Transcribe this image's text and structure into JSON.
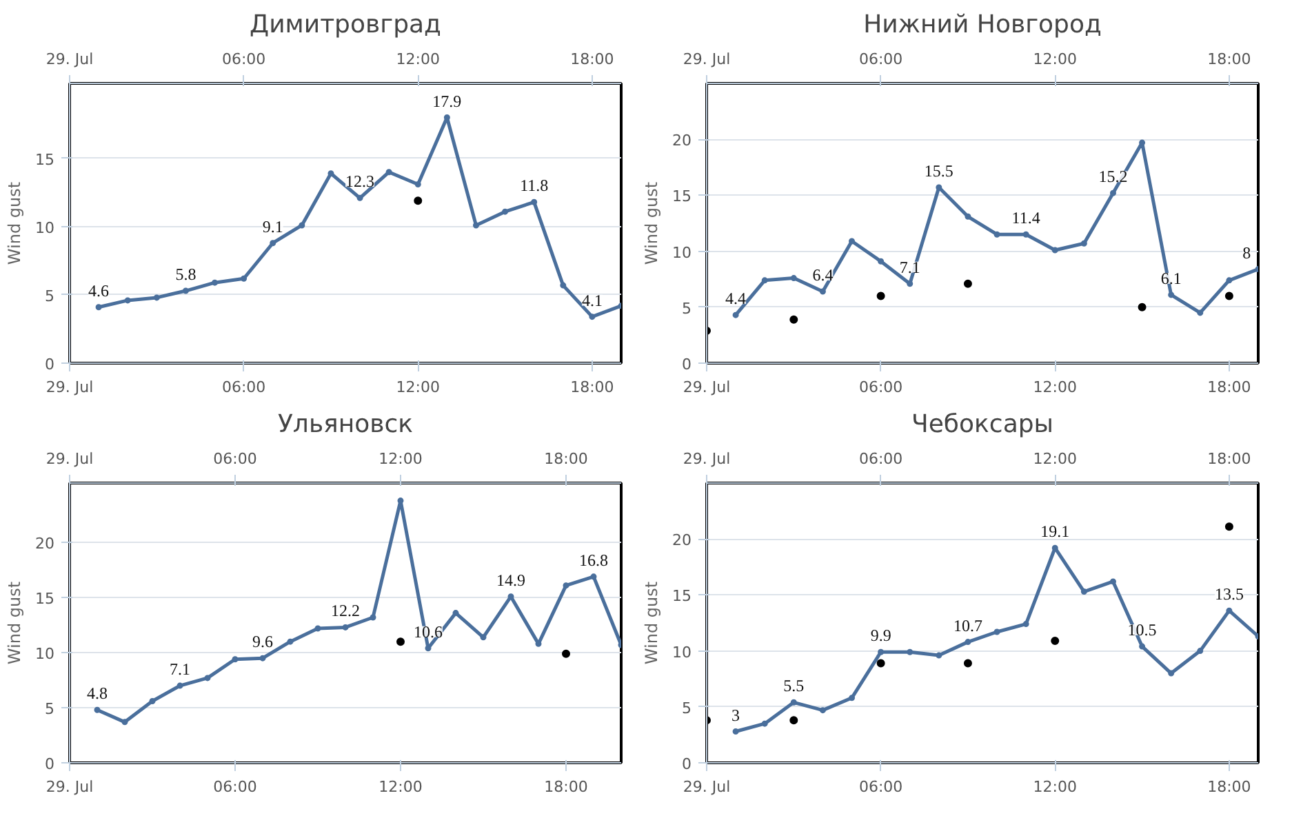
{
  "chart_data": [
    {
      "type": "line",
      "title": "Димитровград",
      "ylabel": "Wind gust",
      "xlim": [
        0,
        19
      ],
      "x2lim": [
        0,
        19
      ],
      "ylim": [
        0,
        20.5
      ],
      "yticks": [
        0,
        5,
        10,
        15
      ],
      "xticks": [
        {
          "value": 0,
          "label": "29. Jul"
        },
        {
          "value": 6,
          "label": "06:00"
        },
        {
          "value": 12,
          "label": "12:00"
        },
        {
          "value": 18,
          "label": "18:00"
        }
      ],
      "x2ticks": [
        {
          "value": 0,
          "label": "29. Jul"
        },
        {
          "value": 6,
          "label": "06:00"
        },
        {
          "value": 12,
          "label": "12:00"
        },
        {
          "value": 18,
          "label": "18:00"
        }
      ],
      "grid": "y",
      "marker": "circle",
      "line_style": "solid",
      "series": [
        {
          "color": "#4a6f9c",
          "x": [
            1,
            2,
            3,
            4,
            5,
            6,
            7,
            8,
            9,
            10,
            11,
            12,
            13,
            14,
            15,
            16,
            17,
            18,
            19
          ],
          "values": [
            4.1,
            4.6,
            4.8,
            5.3,
            5.9,
            6.2,
            8.8,
            10.1,
            13.9,
            12.1,
            14.0,
            13.1,
            18.0,
            10.1,
            11.1,
            11.8,
            5.7,
            3.4,
            4.2
          ]
        },
        {
          "type": "scatter",
          "color": "#000000",
          "x": [
            12
          ],
          "values": [
            11.9
          ]
        }
      ],
      "annotations": [
        {
          "text": "4.6",
          "x": 1,
          "y": 4.1
        },
        {
          "text": "5.8",
          "x": 4,
          "y": 5.3
        },
        {
          "text": "9.1",
          "x": 7,
          "y": 8.8
        },
        {
          "text": "12.3",
          "x": 10,
          "y": 12.1
        },
        {
          "text": "17.9",
          "x": 13,
          "y": 18.0
        },
        {
          "text": "11.8",
          "x": 16,
          "y": 11.8
        },
        {
          "text": "4.1",
          "x": 18,
          "y": 3.4
        }
      ]
    },
    {
      "type": "line",
      "title": "Нижний Новгород",
      "ylabel": "Wind gust",
      "xlim": [
        0,
        19
      ],
      "x2lim": [
        0,
        19
      ],
      "ylim": [
        0,
        25
      ],
      "yticks": [
        0,
        5,
        10,
        15,
        20
      ],
      "xticks": [
        {
          "value": 0,
          "label": "29. Jul"
        },
        {
          "value": 6,
          "label": "06:00"
        },
        {
          "value": 12,
          "label": "12:00"
        },
        {
          "value": 18,
          "label": "18:00"
        }
      ],
      "x2ticks": [
        {
          "value": 0,
          "label": "29. Jul"
        },
        {
          "value": 6,
          "label": "06:00"
        },
        {
          "value": 12,
          "label": "12:00"
        },
        {
          "value": 18,
          "label": "18:00"
        }
      ],
      "grid": "y",
      "marker": "circle",
      "line_style": "solid",
      "series": [
        {
          "color": "#4a6f9c",
          "x": [
            1,
            2,
            3,
            4,
            5,
            6,
            7,
            8,
            9,
            10,
            11,
            12,
            13,
            14,
            15,
            16,
            17,
            18,
            19
          ],
          "values": [
            4.3,
            7.4,
            7.6,
            6.4,
            10.9,
            9.1,
            7.1,
            15.7,
            13.1,
            11.5,
            11.5,
            10.1,
            10.7,
            15.2,
            19.7,
            6.1,
            4.5,
            7.4,
            8.4
          ]
        },
        {
          "type": "scatter",
          "color": "#000000",
          "x": [
            0,
            3,
            6,
            9,
            15,
            18
          ],
          "values": [
            2.9,
            3.9,
            6.0,
            7.1,
            5.0,
            6.0
          ]
        }
      ],
      "annotations": [
        {
          "text": "4.4",
          "x": 1,
          "y": 4.3
        },
        {
          "text": "6.4",
          "x": 4,
          "y": 6.4
        },
        {
          "text": "7.1",
          "x": 7,
          "y": 7.1
        },
        {
          "text": "15.5",
          "x": 8,
          "y": 15.7
        },
        {
          "text": "11.4",
          "x": 11,
          "y": 11.5
        },
        {
          "text": "15.2",
          "x": 14,
          "y": 15.2
        },
        {
          "text": "6.1",
          "x": 16,
          "y": 6.1
        },
        {
          "text": "8",
          "x": 18.6,
          "y": 8.4
        }
      ]
    },
    {
      "type": "line",
      "title": "Ульяновск",
      "ylabel": "Wind gust",
      "xlim": [
        0,
        20
      ],
      "x2lim": [
        0,
        20
      ],
      "ylim": [
        0,
        25.4
      ],
      "yticks": [
        0,
        5,
        10,
        15,
        20
      ],
      "xticks": [
        {
          "value": 0,
          "label": "29. Jul"
        },
        {
          "value": 6,
          "label": "06:00"
        },
        {
          "value": 12,
          "label": "12:00"
        },
        {
          "value": 18,
          "label": "18:00"
        }
      ],
      "x2ticks": [
        {
          "value": 0,
          "label": "29. Jul"
        },
        {
          "value": 6,
          "label": "06:00"
        },
        {
          "value": 12,
          "label": "12:00"
        },
        {
          "value": 18,
          "label": "18:00"
        }
      ],
      "grid": "y",
      "marker": "circle",
      "line_style": "solid",
      "series": [
        {
          "color": "#4a6f9c",
          "x": [
            1,
            2,
            3,
            4,
            5,
            6,
            7,
            8,
            9,
            10,
            11,
            12,
            13,
            14,
            15,
            16,
            17,
            18,
            19,
            20
          ],
          "values": [
            4.8,
            3.7,
            5.6,
            7.0,
            7.7,
            9.4,
            9.5,
            11.0,
            12.2,
            12.3,
            13.2,
            23.8,
            10.4,
            13.6,
            11.4,
            15.1,
            10.8,
            16.1,
            16.9,
            10.7
          ]
        },
        {
          "type": "scatter",
          "color": "#000000",
          "x": [
            12,
            18
          ],
          "values": [
            11.0,
            9.9
          ]
        }
      ],
      "annotations": [
        {
          "text": "4.8",
          "x": 1,
          "y": 4.8
        },
        {
          "text": "7.1",
          "x": 4,
          "y": 7.0
        },
        {
          "text": "9.6",
          "x": 7,
          "y": 9.5
        },
        {
          "text": "12.2",
          "x": 10,
          "y": 12.3
        },
        {
          "text": "10.6",
          "x": 13,
          "y": 10.4
        },
        {
          "text": "14.9",
          "x": 16,
          "y": 15.1
        },
        {
          "text": "16.8",
          "x": 19,
          "y": 16.9
        }
      ]
    },
    {
      "type": "line",
      "title": "Чебоксары",
      "ylabel": "Wind gust",
      "xlim": [
        0,
        19
      ],
      "x2lim": [
        0,
        19
      ],
      "ylim": [
        0,
        25
      ],
      "yticks": [
        0,
        5,
        10,
        15,
        20
      ],
      "xticks": [
        {
          "value": 0,
          "label": "29. Jul"
        },
        {
          "value": 6,
          "label": "06:00"
        },
        {
          "value": 12,
          "label": "12:00"
        },
        {
          "value": 18,
          "label": "18:00"
        }
      ],
      "x2ticks": [
        {
          "value": 0,
          "label": "29. Jul"
        },
        {
          "value": 6,
          "label": "06:00"
        },
        {
          "value": 12,
          "label": "12:00"
        },
        {
          "value": 18,
          "label": "18:00"
        }
      ],
      "grid": "y",
      "marker": "circle",
      "line_style": "solid",
      "series": [
        {
          "color": "#4a6f9c",
          "x": [
            1,
            2,
            3,
            4,
            5,
            6,
            7,
            8,
            9,
            10,
            11,
            12,
            13,
            14,
            15,
            16,
            17,
            18,
            19
          ],
          "values": [
            2.8,
            3.5,
            5.4,
            4.7,
            5.8,
            9.9,
            9.9,
            9.6,
            10.8,
            11.7,
            12.4,
            19.2,
            15.3,
            16.2,
            10.4,
            8.0,
            10.0,
            13.6,
            11.3
          ]
        },
        {
          "type": "scatter",
          "color": "#000000",
          "x": [
            0,
            3,
            6,
            9,
            12,
            18
          ],
          "values": [
            3.8,
            3.8,
            8.9,
            8.9,
            10.9,
            21.1
          ]
        }
      ],
      "annotations": [
        {
          "text": "3",
          "x": 1,
          "y": 2.8
        },
        {
          "text": "5.5",
          "x": 3,
          "y": 5.4
        },
        {
          "text": "9.9",
          "x": 6,
          "y": 9.9
        },
        {
          "text": "10.7",
          "x": 9,
          "y": 10.8
        },
        {
          "text": "19.1",
          "x": 12,
          "y": 19.2
        },
        {
          "text": "10.5",
          "x": 15,
          "y": 10.4
        },
        {
          "text": "13.5",
          "x": 18,
          "y": 13.6
        }
      ]
    }
  ]
}
